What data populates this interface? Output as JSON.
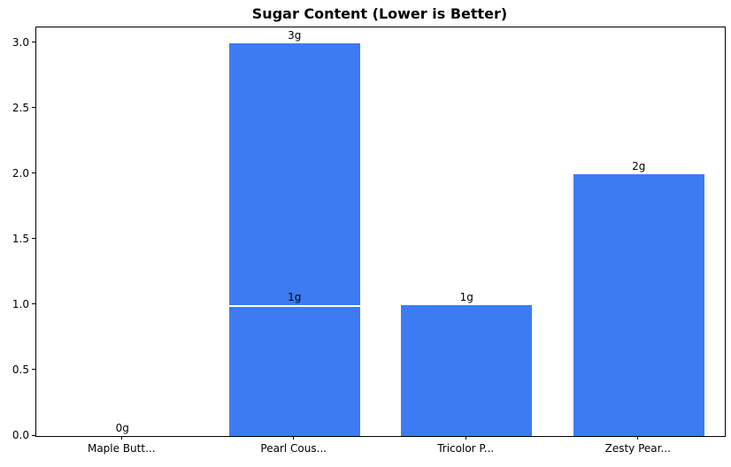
{
  "chart_data": {
    "type": "bar",
    "title": "Sugar Content (Lower is Better)",
    "categories": [
      "Maple Butt...",
      "Pearl Cous...",
      "Tricolor P...",
      "Zesty Pear..."
    ],
    "values": [
      0,
      3,
      1,
      2
    ],
    "bar_labels": [
      "0g",
      "3g",
      "1g",
      "2g"
    ],
    "overlay_bars": [
      {
        "category_index": 1,
        "value": 1,
        "label": "1g"
      }
    ],
    "bar_color": "#3C7BF2",
    "overlay_edge_color": "#ffffff",
    "xlabel": "",
    "ylabel": "",
    "ylim": [
      0,
      3.12
    ],
    "yticks": [
      "0.0",
      "0.5",
      "1.0",
      "1.5",
      "2.0",
      "2.5",
      "3.0"
    ],
    "grid": false,
    "legend": false
  }
}
